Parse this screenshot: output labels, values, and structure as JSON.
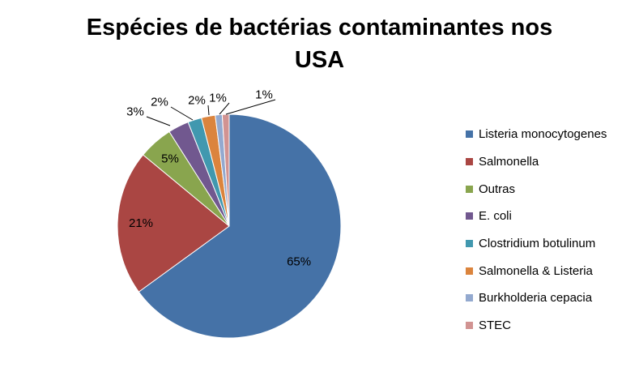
{
  "chart_data": {
    "type": "pie",
    "title": "Espécies de bactérias contaminantes nos USA",
    "title_lines": [
      "Espécies de bactérias contaminantes nos",
      "USA"
    ],
    "legend_position": "right",
    "slices": [
      {
        "name": "Listeria monocytogenes",
        "value": 65,
        "label": "65%",
        "color": "#4572A7"
      },
      {
        "name": "Salmonella",
        "value": 21,
        "label": "21%",
        "color": "#AA4643"
      },
      {
        "name": "Outras",
        "value": 5,
        "label": "5%",
        "color": "#89A54E"
      },
      {
        "name": "E. coli",
        "value": 3,
        "label": "3%",
        "color": "#71588F"
      },
      {
        "name": "Clostridium botulinum",
        "value": 2,
        "label": "2%",
        "color": "#4198AF"
      },
      {
        "name": "Salmonella & Listeria",
        "value": 2,
        "label": "2%",
        "color": "#DB843D"
      },
      {
        "name": "Burkholderia cepacia",
        "value": 1,
        "label": "1%",
        "color": "#93A9CF"
      },
      {
        "name": "STEC",
        "value": 1,
        "label": "1%",
        "color": "#D19392"
      }
    ]
  }
}
